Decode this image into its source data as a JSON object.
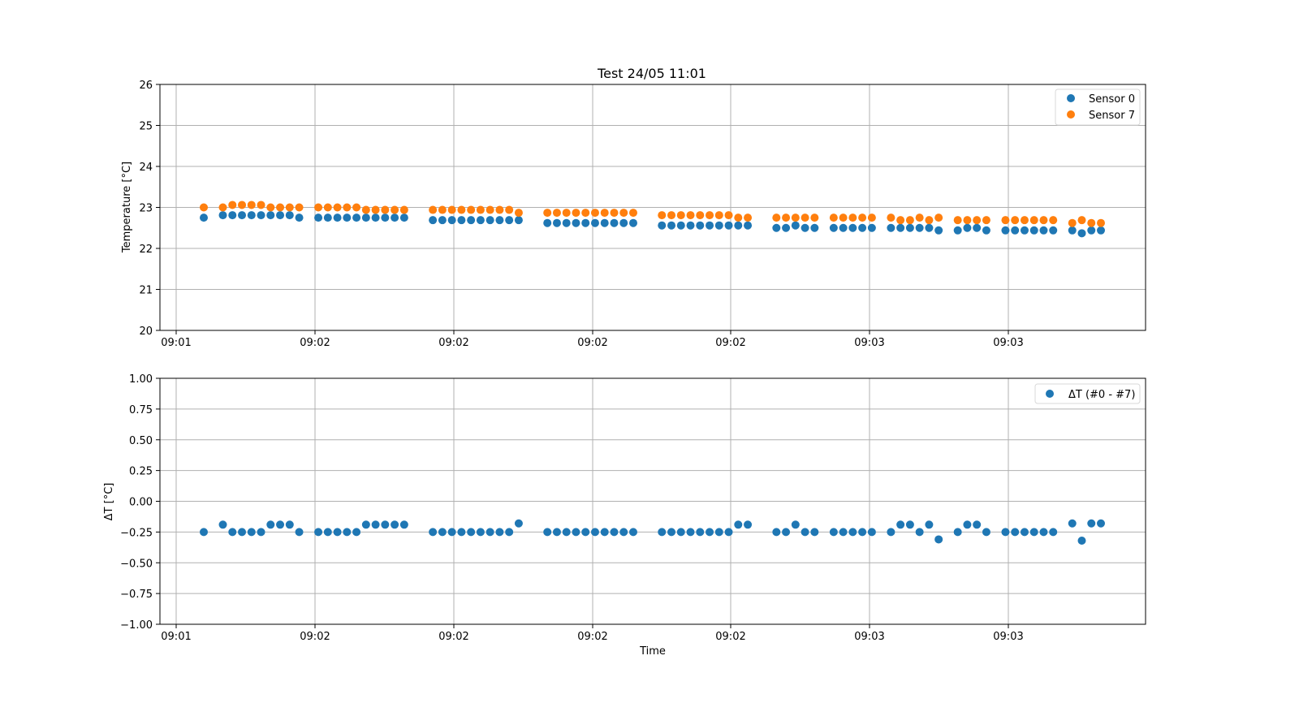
{
  "chart_data": [
    {
      "type": "scatter",
      "title": "Test 24/05 11:01",
      "xlabel": "",
      "ylabel": "Temperature [°C]",
      "ylim": [
        20,
        26
      ],
      "yticks": [
        20,
        21,
        22,
        23,
        24,
        25,
        26
      ],
      "xticks": [
        "09:01",
        "09:02",
        "09:02",
        "09:02",
        "09:02",
        "09:03",
        "09:03"
      ],
      "grid": true,
      "legend_position": "top-right",
      "x": [
        1,
        3,
        4,
        5,
        6,
        7,
        8,
        9,
        10,
        11,
        13,
        14,
        15,
        16,
        17,
        18,
        19,
        20,
        21,
        22,
        25,
        26,
        27,
        28,
        29,
        30,
        31,
        32,
        33,
        34,
        37,
        38,
        39,
        40,
        41,
        42,
        43,
        44,
        45,
        46,
        49,
        50,
        51,
        52,
        53,
        54,
        55,
        56,
        57,
        58,
        61,
        62,
        63,
        64,
        65,
        67,
        68,
        69,
        70,
        71,
        73,
        74,
        75,
        76,
        77,
        78,
        80,
        81,
        82,
        83,
        85,
        86,
        87,
        88,
        89,
        90,
        92,
        93,
        94,
        95
      ],
      "series": [
        {
          "name": "Sensor 0",
          "color": "#1f77b4",
          "values": [
            22.75,
            22.81,
            22.81,
            22.81,
            22.81,
            22.81,
            22.81,
            22.81,
            22.81,
            22.75,
            22.75,
            22.75,
            22.75,
            22.75,
            22.75,
            22.75,
            22.75,
            22.75,
            22.75,
            22.75,
            22.69,
            22.69,
            22.69,
            22.69,
            22.69,
            22.69,
            22.69,
            22.69,
            22.69,
            22.69,
            22.62,
            22.62,
            22.62,
            22.62,
            22.62,
            22.62,
            22.62,
            22.62,
            22.62,
            22.62,
            22.56,
            22.56,
            22.56,
            22.56,
            22.56,
            22.56,
            22.56,
            22.56,
            22.56,
            22.56,
            22.5,
            22.5,
            22.56,
            22.5,
            22.5,
            22.5,
            22.5,
            22.5,
            22.5,
            22.5,
            22.5,
            22.5,
            22.5,
            22.5,
            22.5,
            22.44,
            22.44,
            22.5,
            22.5,
            22.44,
            22.44,
            22.44,
            22.44,
            22.44,
            22.44,
            22.44,
            22.44,
            22.37,
            22.44,
            22.44
          ]
        },
        {
          "name": "Sensor 7",
          "color": "#ff7f0e",
          "values": [
            23.0,
            23.0,
            23.06,
            23.06,
            23.06,
            23.06,
            23.0,
            23.0,
            23.0,
            23.0,
            23.0,
            23.0,
            23.0,
            23.0,
            23.0,
            22.94,
            22.94,
            22.94,
            22.94,
            22.94,
            22.94,
            22.94,
            22.94,
            22.94,
            22.94,
            22.94,
            22.94,
            22.94,
            22.94,
            22.87,
            22.87,
            22.87,
            22.87,
            22.87,
            22.87,
            22.87,
            22.87,
            22.87,
            22.87,
            22.87,
            22.81,
            22.81,
            22.81,
            22.81,
            22.81,
            22.81,
            22.81,
            22.81,
            22.75,
            22.75,
            22.75,
            22.75,
            22.75,
            22.75,
            22.75,
            22.75,
            22.75,
            22.75,
            22.75,
            22.75,
            22.75,
            22.69,
            22.69,
            22.75,
            22.69,
            22.75,
            22.69,
            22.69,
            22.69,
            22.69,
            22.69,
            22.69,
            22.69,
            22.69,
            22.69,
            22.69,
            22.62,
            22.69,
            22.62,
            22.62
          ]
        }
      ]
    },
    {
      "type": "scatter",
      "title": "",
      "xlabel": "Time",
      "ylabel": "ΔT [°C]",
      "ylim": [
        -1,
        1
      ],
      "yticks": [
        "-1.00",
        "-0.75",
        "-0.50",
        "-0.25",
        "0.00",
        "0.25",
        "0.50",
        "0.75",
        "1.00"
      ],
      "xticks": [
        "09:01",
        "09:02",
        "09:02",
        "09:02",
        "09:02",
        "09:03",
        "09:03"
      ],
      "grid": true,
      "legend_position": "top-right",
      "x": [
        1,
        3,
        4,
        5,
        6,
        7,
        8,
        9,
        10,
        11,
        13,
        14,
        15,
        16,
        17,
        18,
        19,
        20,
        21,
        22,
        25,
        26,
        27,
        28,
        29,
        30,
        31,
        32,
        33,
        34,
        37,
        38,
        39,
        40,
        41,
        42,
        43,
        44,
        45,
        46,
        49,
        50,
        51,
        52,
        53,
        54,
        55,
        56,
        57,
        58,
        61,
        62,
        63,
        64,
        65,
        67,
        68,
        69,
        70,
        71,
        73,
        74,
        75,
        76,
        77,
        78,
        80,
        81,
        82,
        83,
        85,
        86,
        87,
        88,
        89,
        90,
        92,
        93,
        94,
        95
      ],
      "series": [
        {
          "name": "ΔT (#0 - #7)",
          "color": "#1f77b4",
          "values": [
            -0.25,
            -0.19,
            -0.25,
            -0.25,
            -0.25,
            -0.25,
            -0.19,
            -0.19,
            -0.19,
            -0.25,
            -0.25,
            -0.25,
            -0.25,
            -0.25,
            -0.25,
            -0.19,
            -0.19,
            -0.19,
            -0.19,
            -0.19,
            -0.25,
            -0.25,
            -0.25,
            -0.25,
            -0.25,
            -0.25,
            -0.25,
            -0.25,
            -0.25,
            -0.18,
            -0.25,
            -0.25,
            -0.25,
            -0.25,
            -0.25,
            -0.25,
            -0.25,
            -0.25,
            -0.25,
            -0.25,
            -0.25,
            -0.25,
            -0.25,
            -0.25,
            -0.25,
            -0.25,
            -0.25,
            -0.25,
            -0.19,
            -0.19,
            -0.25,
            -0.25,
            -0.19,
            -0.25,
            -0.25,
            -0.25,
            -0.25,
            -0.25,
            -0.25,
            -0.25,
            -0.25,
            -0.19,
            -0.19,
            -0.25,
            -0.19,
            -0.31,
            -0.25,
            -0.19,
            -0.19,
            -0.25,
            -0.25,
            -0.25,
            -0.25,
            -0.25,
            -0.25,
            -0.25,
            -0.18,
            -0.32,
            -0.18,
            -0.18
          ]
        }
      ]
    }
  ]
}
